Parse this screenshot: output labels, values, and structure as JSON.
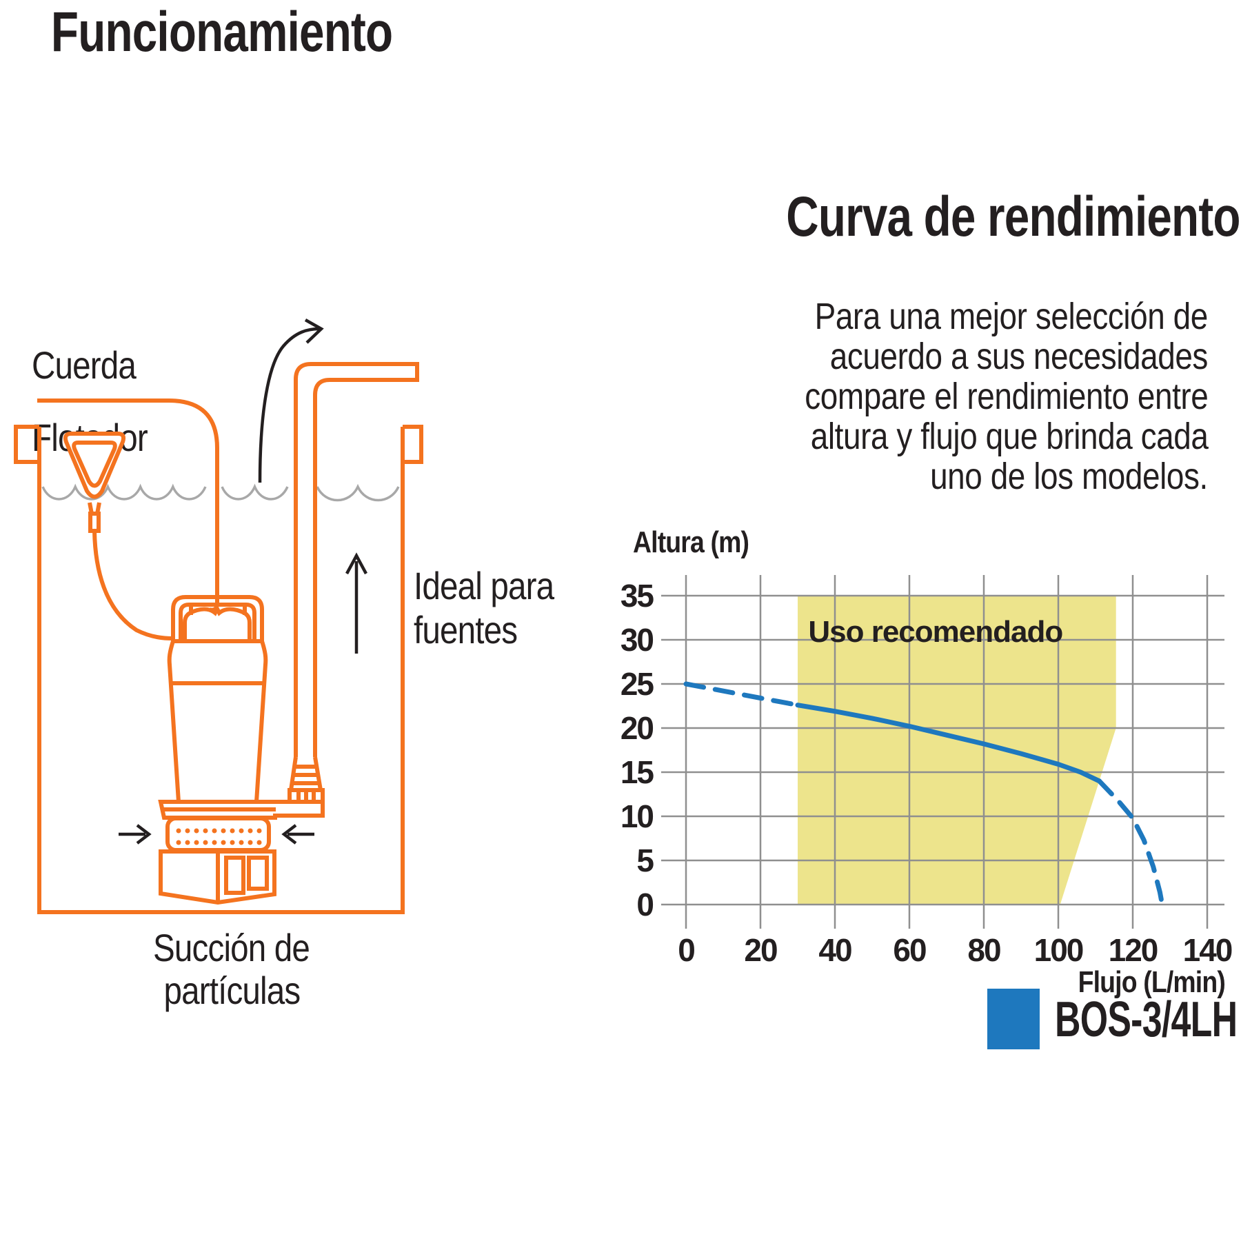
{
  "left": {
    "title": "Funcionamiento",
    "label_cuerda": "Cuerda",
    "label_flotador": "Flotador",
    "label_ideal_1": "Ideal para",
    "label_ideal_2": "fuentes",
    "label_succion_1": "Succión de",
    "label_succion_2": "partículas"
  },
  "right": {
    "title": "Curva de rendimiento",
    "paragraph_lines": [
      "Para una mejor selección de",
      "acuerdo a sus necesidades",
      "compare el rendimiento entre",
      "altura y flujo que brinda cada",
      "uno de los modelos."
    ]
  },
  "chart_data": {
    "type": "line",
    "title": "",
    "xlabel": "Flujo (L/min)",
    "ylabel": "Altura (m)",
    "xlim": [
      0,
      140
    ],
    "ylim": [
      0,
      35
    ],
    "xticks": [
      0,
      20,
      40,
      60,
      80,
      100,
      120,
      140
    ],
    "yticks": [
      0,
      5,
      10,
      15,
      20,
      25,
      30,
      35
    ],
    "grid": true,
    "region": {
      "label": "Uso recomendado",
      "color": "#ede48c",
      "polygon": [
        [
          30,
          0
        ],
        [
          30,
          35
        ],
        [
          115.5,
          35
        ],
        [
          115.5,
          20
        ],
        [
          100.5,
          0
        ]
      ]
    },
    "series": [
      {
        "name": "BOS-3/4LH",
        "color": "#1e78be",
        "segments": [
          {
            "style": "dashed",
            "points": [
              [
                0,
                25
              ],
              [
                5,
                24.6
              ],
              [
                10,
                24.2
              ],
              [
                15,
                23.8
              ],
              [
                20,
                23.4
              ],
              [
                25,
                23.0
              ],
              [
                30,
                22.6
              ]
            ]
          },
          {
            "style": "solid",
            "points": [
              [
                30,
                22.6
              ],
              [
                40,
                21.9
              ],
              [
                50,
                21.1
              ],
              [
                60,
                20.2
              ],
              [
                70,
                19.2
              ],
              [
                80,
                18.2
              ],
              [
                90,
                17.1
              ],
              [
                100,
                15.9
              ],
              [
                106,
                15.0
              ],
              [
                111,
                14.0
              ]
            ]
          },
          {
            "style": "dashed",
            "points": [
              [
                111,
                14.0
              ],
              [
                116,
                11.8
              ],
              [
                120,
                9.8
              ],
              [
                123,
                7.3
              ],
              [
                125.5,
                4.3
              ],
              [
                127.3,
                1.4
              ],
              [
                127.9,
                0
              ]
            ]
          }
        ]
      }
    ],
    "legend": [
      {
        "label": "BOS-3/4LH",
        "color": "#1e78be"
      }
    ],
    "legend_position": "bottom-right"
  },
  "colors": {
    "orange": "#f4731f",
    "blue": "#1e78be",
    "yellow": "#ede48c",
    "grid": "#8f8f8f",
    "waves": "#a8a8a8",
    "ink": "#231f20"
  }
}
